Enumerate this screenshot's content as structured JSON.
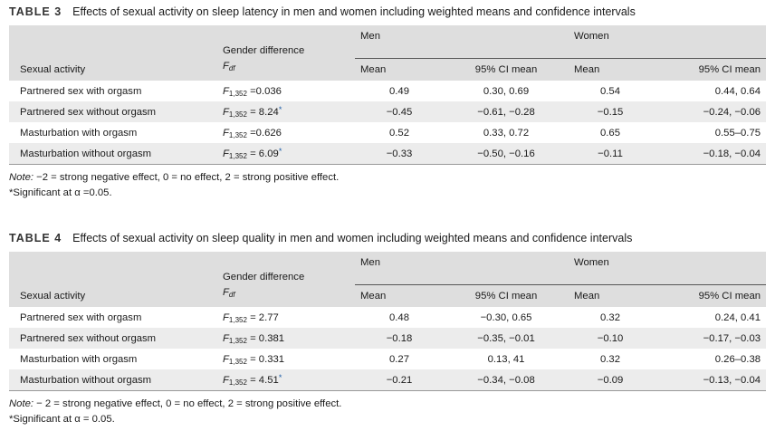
{
  "tables": [
    {
      "number": "TABLE 3",
      "title": "Effects of sexual activity on sleep latency in men and women including weighted means and confidence intervals",
      "headers": {
        "activity": "Sexual activity",
        "gender_diff": "Gender difference",
        "f_symbol": "F",
        "f_sub": "df",
        "men": "Men",
        "women": "Women",
        "mean": "Mean",
        "ci": "95% CI mean"
      },
      "rows": [
        {
          "activity": "Partnered sex with orgasm",
          "f_sub": "1,352",
          "f_val": " =0.036",
          "sig": "",
          "men_mean": "0.49",
          "men_ci": "0.30, 0.69",
          "women_mean": "0.54",
          "women_ci": "0.44, 0.64"
        },
        {
          "activity": "Partnered sex without orgasm",
          "f_sub": "1,352",
          "f_val": " = 8.24",
          "sig": "*",
          "men_mean": "−0.45",
          "men_ci": "−0.61, −0.28",
          "women_mean": "−0.15",
          "women_ci": "−0.24, −0.06"
        },
        {
          "activity": "Masturbation with orgasm",
          "f_sub": "1,352",
          "f_val": " =0.626",
          "sig": "",
          "men_mean": "0.52",
          "men_ci": "0.33, 0.72",
          "women_mean": "0.65",
          "women_ci": "0.55–0.75"
        },
        {
          "activity": "Masturbation without orgasm",
          "f_sub": "1,352",
          "f_val": " = 6.09",
          "sig": "*",
          "men_mean": "−0.33",
          "men_ci": "−0.50, −0.16",
          "women_mean": "−0.11",
          "women_ci": "−0.18, −0.04"
        }
      ],
      "note_label": "Note:",
      "note_text": " −2 = strong negative effect, 0 = no effect, 2 = strong positive effect.",
      "sig_note": "*Significant at α =0.05."
    },
    {
      "number": "TABLE 4",
      "title": "Effects of sexual activity on sleep quality in men and women including weighted means and confidence intervals",
      "headers": {
        "activity": "Sexual activity",
        "gender_diff": "Gender difference",
        "f_symbol": "F",
        "f_sub": "df",
        "men": "Men",
        "women": "Women",
        "mean": "Mean",
        "ci": "95% CI mean"
      },
      "rows": [
        {
          "activity": "Partnered sex with orgasm",
          "f_sub": "1,352",
          "f_val": " = 2.77",
          "sig": "",
          "men_mean": "0.48",
          "men_ci": "−0.30, 0.65",
          "women_mean": "0.32",
          "women_ci": "0.24, 0.41"
        },
        {
          "activity": "Partnered sex without orgasm",
          "f_sub": "1,352",
          "f_val": " = 0.381",
          "sig": "",
          "men_mean": "−0.18",
          "men_ci": "−0.35, −0.01",
          "women_mean": "−0.10",
          "women_ci": "−0.17, −0.03"
        },
        {
          "activity": "Masturbation with orgasm",
          "f_sub": "1,352",
          "f_val": " = 0.331",
          "sig": "",
          "men_mean": "0.27",
          "men_ci": "0.13, 41",
          "women_mean": "0.32",
          "women_ci": "0.26–0.38"
        },
        {
          "activity": "Masturbation without orgasm",
          "f_sub": "1,352",
          "f_val": "  = 4.51",
          "sig": "*",
          "men_mean": "−0.21",
          "men_ci": "−0.34, −0.08",
          "women_mean": "−0.09",
          "women_ci": "−0.13, −0.04"
        }
      ],
      "note_label": "Note:",
      "note_text": " − 2 = strong negative effect, 0 = no effect, 2 = strong positive effect.",
      "sig_note": "*Significant at α = 0.05."
    }
  ]
}
